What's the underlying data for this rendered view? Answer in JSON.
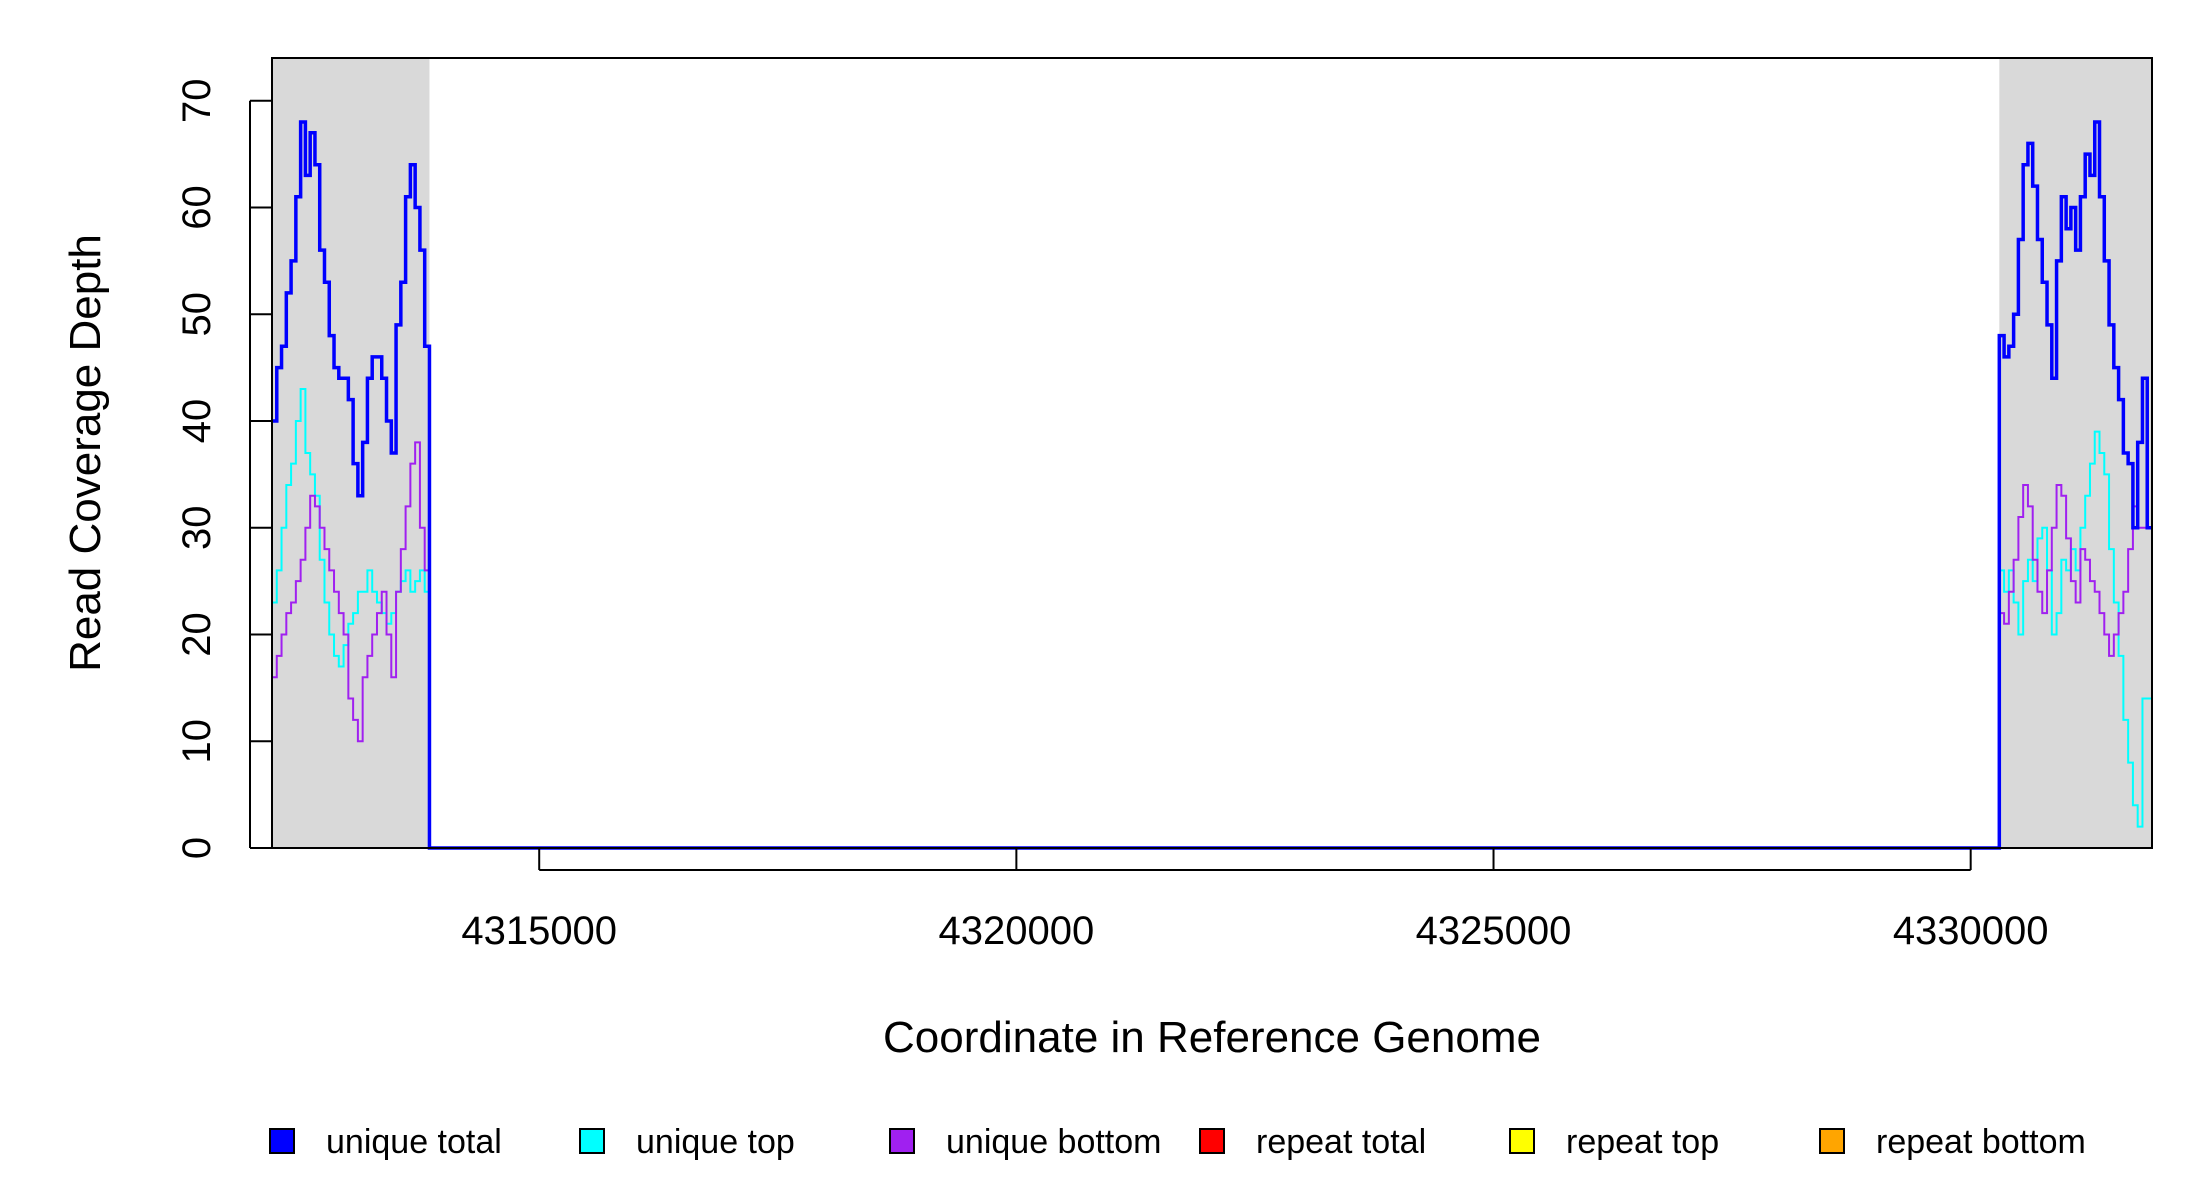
{
  "chart_data": {
    "type": "line",
    "xlabel": "Coordinate in Reference Genome",
    "ylabel": "Read Coverage Depth",
    "xlim": [
      4312200,
      4331900
    ],
    "ylim": [
      0,
      74
    ],
    "x_ticks": [
      4315000,
      4320000,
      4325000,
      4330000
    ],
    "x_tick_labels": [
      "4315000",
      "4320000",
      "4325000",
      "4330000"
    ],
    "y_ticks": [
      0,
      10,
      20,
      30,
      40,
      50,
      60,
      70
    ],
    "y_tick_labels": [
      "0",
      "10",
      "20",
      "30",
      "40",
      "50",
      "60",
      "70"
    ],
    "grid": false,
    "legend_position": "bottom",
    "shaded_regions": [
      [
        4312200,
        4313850
      ],
      [
        4330300,
        4331900
      ]
    ],
    "series": [
      {
        "name": "unique total",
        "color": "#0000ff",
        "width": 3.5,
        "x": [
          4312200,
          4312250,
          4312300,
          4312350,
          4312400,
          4312450,
          4312500,
          4312550,
          4312600,
          4312650,
          4312700,
          4312750,
          4312800,
          4312850,
          4312900,
          4312950,
          4313000,
          4313050,
          4313100,
          4313150,
          4313200,
          4313250,
          4313300,
          4313350,
          4313400,
          4313450,
          4313500,
          4313550,
          4313600,
          4313650,
          4313700,
          4313750,
          4313800,
          4313850,
          4313900,
          4330300,
          4330350,
          4330400,
          4330450,
          4330500,
          4330550,
          4330600,
          4330650,
          4330700,
          4330750,
          4330800,
          4330850,
          4330900,
          4330950,
          4331000,
          4331050,
          4331100,
          4331150,
          4331200,
          4331250,
          4331300,
          4331350,
          4331400,
          4331450,
          4331500,
          4331550,
          4331600,
          4331650,
          4331700,
          4331750,
          4331800,
          4331850,
          4331900
        ],
        "y": [
          40,
          45,
          47,
          52,
          55,
          61,
          68,
          63,
          67,
          64,
          56,
          53,
          48,
          45,
          44,
          44,
          42,
          36,
          33,
          38,
          44,
          46,
          46,
          44,
          40,
          37,
          49,
          53,
          61,
          64,
          60,
          56,
          47,
          0,
          0,
          48,
          46,
          47,
          50,
          57,
          64,
          66,
          62,
          57,
          53,
          49,
          44,
          55,
          61,
          58,
          60,
          56,
          61,
          65,
          63,
          68,
          61,
          55,
          49,
          45,
          42,
          37,
          36,
          30,
          38,
          44,
          30,
          30
        ]
      },
      {
        "name": "unique top",
        "color": "#00ffff",
        "width": 2,
        "x": [
          4312200,
          4312250,
          4312300,
          4312350,
          4312400,
          4312450,
          4312500,
          4312550,
          4312600,
          4312650,
          4312700,
          4312750,
          4312800,
          4312850,
          4312900,
          4312950,
          4313000,
          4313050,
          4313100,
          4313150,
          4313200,
          4313250,
          4313300,
          4313350,
          4313400,
          4313450,
          4313500,
          4313550,
          4313600,
          4313650,
          4313700,
          4313750,
          4313800,
          4313850,
          4313900,
          4330300,
          4330350,
          4330400,
          4330450,
          4330500,
          4330550,
          4330600,
          4330650,
          4330700,
          4330750,
          4330800,
          4330850,
          4330900,
          4330950,
          4331000,
          4331050,
          4331100,
          4331150,
          4331200,
          4331250,
          4331300,
          4331350,
          4331400,
          4331450,
          4331500,
          4331550,
          4331600,
          4331650,
          4331700,
          4331750,
          4331800,
          4331850,
          4331900
        ],
        "y": [
          23,
          26,
          30,
          34,
          36,
          40,
          43,
          37,
          35,
          33,
          27,
          23,
          20,
          18,
          17,
          19,
          21,
          22,
          24,
          24,
          26,
          24,
          23,
          22,
          21,
          22,
          24,
          25,
          26,
          24,
          25,
          26,
          24,
          0,
          0,
          26,
          24,
          26,
          23,
          20,
          25,
          27,
          25,
          29,
          30,
          26,
          20,
          22,
          27,
          26,
          28,
          26,
          30,
          33,
          36,
          39,
          37,
          35,
          28,
          23,
          18,
          12,
          8,
          4,
          2,
          14,
          14,
          14
        ]
      },
      {
        "name": "unique bottom",
        "color": "#a020f0",
        "width": 2,
        "x": [
          4312200,
          4312250,
          4312300,
          4312350,
          4312400,
          4312450,
          4312500,
          4312550,
          4312600,
          4312650,
          4312700,
          4312750,
          4312800,
          4312850,
          4312900,
          4312950,
          4313000,
          4313050,
          4313100,
          4313150,
          4313200,
          4313250,
          4313300,
          4313350,
          4313400,
          4313450,
          4313500,
          4313550,
          4313600,
          4313650,
          4313700,
          4313750,
          4313800,
          4313850,
          4313900,
          4330300,
          4330350,
          4330400,
          4330450,
          4330500,
          4330550,
          4330600,
          4330650,
          4330700,
          4330750,
          4330800,
          4330850,
          4330900,
          4330950,
          4331000,
          4331050,
          4331100,
          4331150,
          4331200,
          4331250,
          4331300,
          4331350,
          4331400,
          4331450,
          4331500,
          4331550,
          4331600,
          4331650,
          4331700,
          4331750,
          4331800,
          4331850,
          4331900
        ],
        "y": [
          16,
          18,
          20,
          22,
          23,
          25,
          27,
          30,
          33,
          32,
          30,
          28,
          26,
          24,
          22,
          20,
          14,
          12,
          10,
          16,
          18,
          20,
          22,
          24,
          20,
          16,
          24,
          28,
          32,
          36,
          38,
          30,
          26,
          0,
          0,
          22,
          21,
          24,
          27,
          31,
          34,
          32,
          27,
          24,
          22,
          26,
          30,
          34,
          33,
          29,
          25,
          23,
          28,
          27,
          25,
          24,
          22,
          20,
          18,
          20,
          22,
          24,
          28,
          32,
          30,
          30,
          30,
          30
        ]
      },
      {
        "name": "repeat total",
        "color": "#ff0000",
        "width": 2,
        "x": [
          4312200,
          4331900
        ],
        "y": [
          0,
          0
        ]
      },
      {
        "name": "repeat top",
        "color": "#ffff00",
        "width": 2,
        "x": [
          4312200,
          4331900
        ],
        "y": [
          0,
          0
        ]
      },
      {
        "name": "repeat bottom",
        "color": "#ffa500",
        "width": 2,
        "x": [
          4312200,
          4331900
        ],
        "y": [
          0,
          0
        ]
      }
    ]
  }
}
